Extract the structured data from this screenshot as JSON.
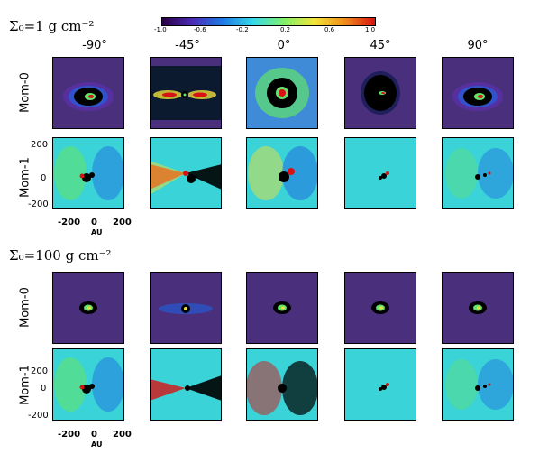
{
  "colorbar": {
    "ticks": [
      "-1.0",
      "-0.6",
      "-0.2",
      "0.2",
      "0.6",
      "1.0"
    ],
    "stops": [
      "#2a0040",
      "#4b2bb8",
      "#1e7ae6",
      "#36d9e8",
      "#7ff06a",
      "#f2e43a",
      "#f08d1b",
      "#d81313"
    ]
  },
  "sections": [
    {
      "label": "Σ₀=1 g cm⁻²",
      "columns": [
        "-90°",
        "-45°",
        "0°",
        "45°",
        "90°"
      ],
      "rows": [
        "Mom-0",
        "Mom-1"
      ]
    },
    {
      "label": "Σ₀=100 g cm⁻²",
      "rows": [
        "Mom-0",
        "Mom-1"
      ]
    }
  ],
  "axes": {
    "y_ticks": [
      "200",
      "0",
      "-200"
    ],
    "x_ticks": [
      "-200",
      "0",
      "200"
    ],
    "x_unit": "AU"
  },
  "colors": {
    "mom0_background": "#4a2f7c",
    "mom1_background": "#39d3d8",
    "black": "#000000",
    "red": "#d81313",
    "green": "#63e26c",
    "yellow": "#eddf3b",
    "blue": "#1f63e0"
  }
}
